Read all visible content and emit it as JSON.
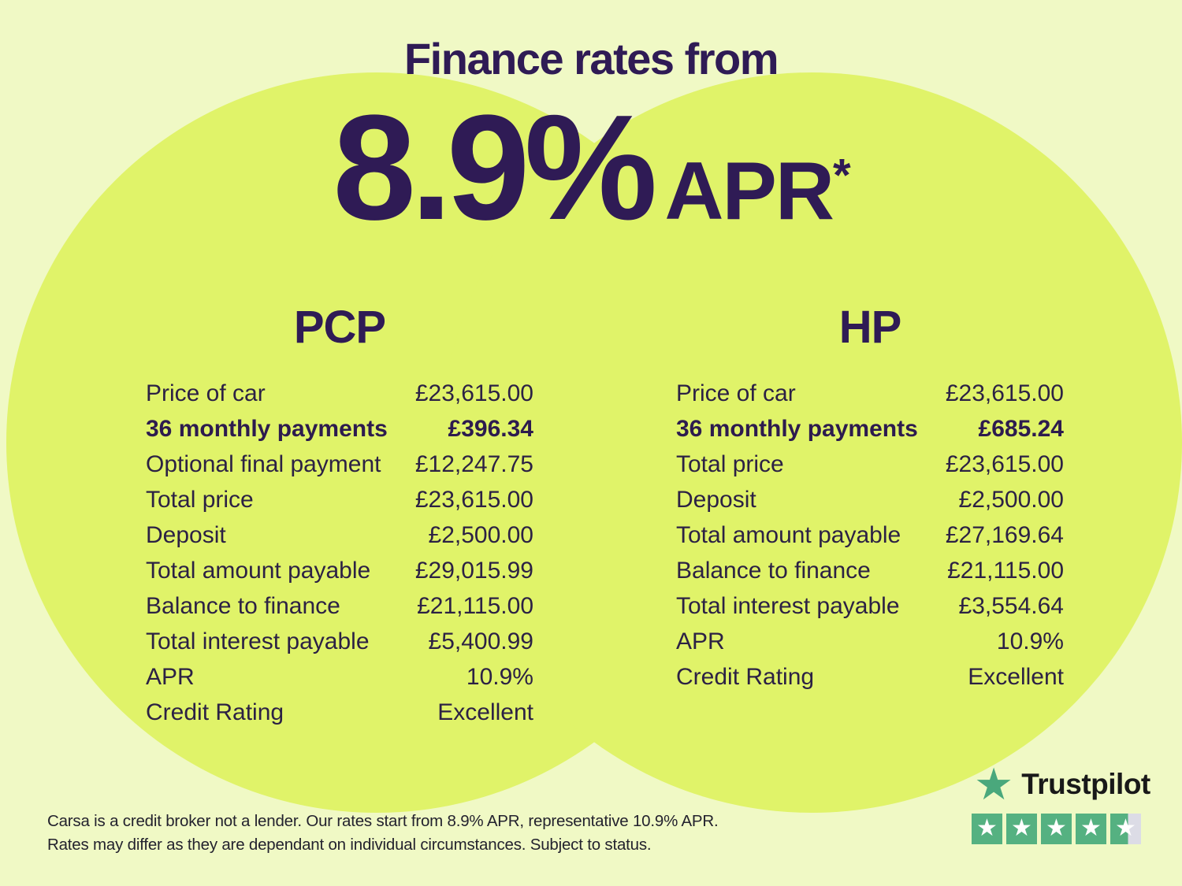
{
  "header": {
    "title": "Finance rates from",
    "rate_value": "8.9%",
    "rate_unit": "APR",
    "rate_footnote_marker": "*"
  },
  "pcp": {
    "heading": "PCP",
    "rows": [
      {
        "label": "Price of car",
        "value": "£23,615.00"
      },
      {
        "label": "36 monthly payments",
        "value": "£396.34",
        "bold": true
      },
      {
        "label": "Optional final payment",
        "value": "£12,247.75"
      },
      {
        "label": "Total price",
        "value": "£23,615.00"
      },
      {
        "label": "Deposit",
        "value": "£2,500.00"
      },
      {
        "label": "Total amount payable",
        "value": "£29,015.99"
      },
      {
        "label": "Balance to finance",
        "value": "£21,115.00"
      },
      {
        "label": "Total interest payable",
        "value": "£5,400.99"
      },
      {
        "label": "APR",
        "value": "10.9%"
      },
      {
        "label": "Credit Rating",
        "value": "Excellent"
      }
    ]
  },
  "hp": {
    "heading": "HP",
    "rows": [
      {
        "label": "Price of car",
        "value": "£23,615.00"
      },
      {
        "label": "36 monthly payments",
        "value": "£685.24",
        "bold": true
      },
      {
        "label": "Total price",
        "value": "£23,615.00"
      },
      {
        "label": "Deposit",
        "value": "£2,500.00"
      },
      {
        "label": "Total amount payable",
        "value": "£27,169.64"
      },
      {
        "label": "Balance to finance",
        "value": "£21,115.00"
      },
      {
        "label": "Total interest payable",
        "value": "£3,554.64"
      },
      {
        "label": "APR",
        "value": "10.9%"
      },
      {
        "label": "Credit Rating",
        "value": "Excellent"
      }
    ]
  },
  "disclaimer": {
    "line1": "Carsa is a credit broker not a lender. Our rates start from 8.9% APR, representative 10.9% APR.",
    "line2": "Rates may differ as they are dependant on individual circumstances. Subject to status."
  },
  "trustpilot": {
    "brand": "Trustpilot",
    "star_glyph": "★",
    "rating_out_of_5": 4.5
  },
  "colors": {
    "background": "#f0f9c5",
    "circle_green": "#e0f369",
    "heading_purple": "#2f1b55",
    "table_text_purple": "#2c2144",
    "disclaimer_text": "#23222e",
    "trustpilot_star_green": "#55b181",
    "trustpilot_logo_green": "#4aa87c",
    "trustpilot_empty_gray": "#dcdce6",
    "trustpilot_wordmark": "#191919",
    "star_white": "#ffffff"
  }
}
